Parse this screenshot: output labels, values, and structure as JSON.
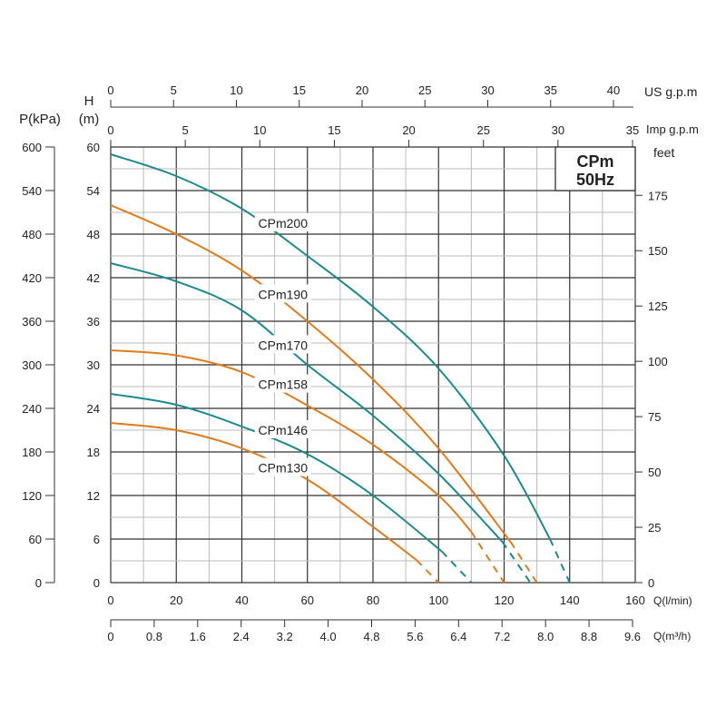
{
  "chart_data": {
    "type": "line",
    "title": "CPm",
    "subtitle": "50Hz",
    "xlabel": "Q(l/min)",
    "x2label": "Q(m³/h)",
    "ylabel_left_h": "H",
    "ylabel_left_h_unit": "(m)",
    "ylabel_left_p": "P(kPa)",
    "ylabel_right": "feet",
    "top_axis_us": "US  g.p.m",
    "top_axis_imp": "Imp  g.p.m",
    "xlim": [
      0,
      160
    ],
    "ylim": [
      0,
      60
    ],
    "x_ticks": [
      "0",
      "20",
      "40",
      "60",
      "80",
      "100",
      "120",
      "140",
      "160"
    ],
    "x2_ticks": [
      "0",
      "0.8",
      "1.6",
      "2.4",
      "3.2",
      "4.0",
      "4.8",
      "5.6",
      "6.4",
      "7.2",
      "8.0",
      "8.8",
      "9.6"
    ],
    "h_ticks": [
      "0",
      "6",
      "12",
      "18",
      "24",
      "30",
      "36",
      "42",
      "48",
      "54",
      "60"
    ],
    "p_ticks": [
      "0",
      "60",
      "120",
      "180",
      "240",
      "300",
      "360",
      "420",
      "480",
      "540",
      "600"
    ],
    "feet_ticks": [
      "0",
      "25",
      "50",
      "75",
      "100",
      "125",
      "150",
      "175"
    ],
    "us_ticks": [
      "0",
      "5",
      "10",
      "15",
      "20",
      "25",
      "30",
      "35",
      "40"
    ],
    "imp_ticks": [
      "0",
      "5",
      "10",
      "15",
      "20",
      "25",
      "30",
      "35"
    ],
    "grid": true,
    "series": [
      {
        "name": "CPm200",
        "color": "#1a8a8e",
        "solid": [
          [
            0,
            59
          ],
          [
            20,
            56
          ],
          [
            40,
            51.5
          ],
          [
            60,
            45
          ],
          [
            80,
            38
          ],
          [
            100,
            29.5
          ],
          [
            120,
            17.5
          ],
          [
            134,
            6
          ]
        ],
        "dashed": [
          [
            134,
            6
          ],
          [
            140,
            0
          ]
        ],
        "label_at": [
          60,
          49.5
        ]
      },
      {
        "name": "CPm190",
        "color": "#e07b1a",
        "solid": [
          [
            0,
            52
          ],
          [
            20,
            48
          ],
          [
            40,
            43
          ],
          [
            60,
            36
          ],
          [
            80,
            28
          ],
          [
            100,
            18.5
          ],
          [
            122,
            5.6
          ]
        ],
        "dashed": [
          [
            122,
            5.6
          ],
          [
            130,
            0
          ]
        ],
        "label_at": [
          60,
          39.7
        ]
      },
      {
        "name": "CPm170",
        "color": "#1a8a8e",
        "solid": [
          [
            0,
            44
          ],
          [
            20,
            41.5
          ],
          [
            40,
            37.5
          ],
          [
            60,
            30
          ],
          [
            80,
            23
          ],
          [
            100,
            15
          ],
          [
            119.5,
            5.6
          ]
        ],
        "dashed": [
          [
            119.5,
            5.6
          ],
          [
            128,
            0
          ]
        ],
        "label_at": [
          60,
          32.7
        ]
      },
      {
        "name": "CPm158",
        "color": "#e07b1a",
        "solid": [
          [
            0,
            32
          ],
          [
            20,
            31.3
          ],
          [
            40,
            29
          ],
          [
            60,
            24.4
          ],
          [
            80,
            19
          ],
          [
            100,
            12
          ],
          [
            110,
            7
          ]
        ],
        "dashed": [
          [
            110,
            7
          ],
          [
            120,
            0
          ]
        ],
        "label_at": [
          60,
          27.3
        ]
      },
      {
        "name": "CPm146",
        "color": "#1a8a8e",
        "solid": [
          [
            0,
            26
          ],
          [
            20,
            24.5
          ],
          [
            40,
            21.5
          ],
          [
            60,
            17.7
          ],
          [
            80,
            12
          ],
          [
            101,
            4.3
          ]
        ],
        "dashed": [
          [
            101,
            4.3
          ],
          [
            110,
            0
          ]
        ],
        "label_at": [
          60,
          21
        ]
      },
      {
        "name": "CPm130",
        "color": "#e07b1a",
        "solid": [
          [
            0,
            22
          ],
          [
            20,
            21
          ],
          [
            40,
            18.5
          ],
          [
            60,
            14.2
          ],
          [
            80,
            7.7
          ],
          [
            93.3,
            3.1
          ]
        ],
        "dashed": [
          [
            93.3,
            3.1
          ],
          [
            100,
            0
          ]
        ],
        "label_at": [
          60,
          15.8
        ]
      }
    ]
  }
}
